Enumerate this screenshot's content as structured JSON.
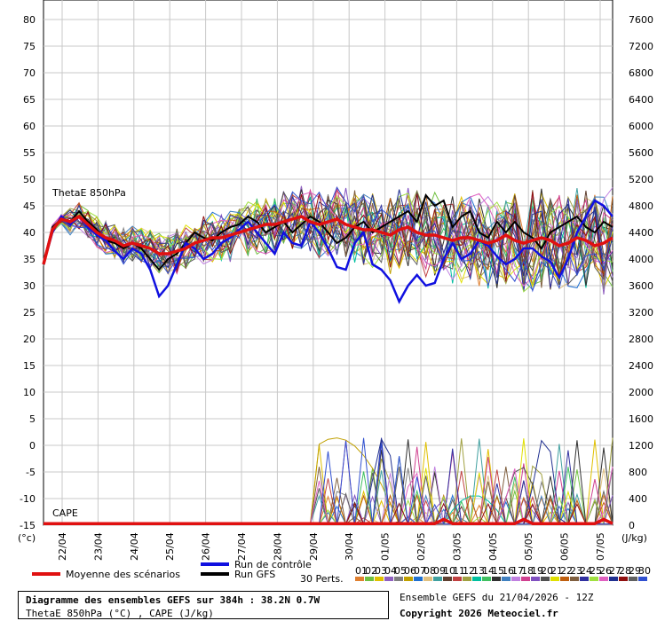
{
  "chart_data": {
    "type": "line",
    "title": "Diagramme des ensembles GEFS sur 384h : 38.2N 0.7W",
    "subtitle": "ThetaE 850hPa (°C) , CAPE (J/kg)",
    "left_axis": {
      "unit": "(°c)",
      "ylim": [
        -15,
        80
      ],
      "ticks": [
        80,
        75,
        70,
        65,
        60,
        55,
        50,
        45,
        40,
        35,
        30,
        25,
        20,
        15,
        10,
        5,
        0,
        -5,
        -10,
        -15
      ]
    },
    "right_axis": {
      "unit": "(J/kg)",
      "ylim": [
        0,
        7600
      ],
      "ticks": [
        7600,
        7200,
        6800,
        6400,
        6000,
        5600,
        5200,
        4800,
        4400,
        4000,
        3600,
        3200,
        2800,
        2400,
        2000,
        1600,
        1200,
        800,
        400,
        0
      ]
    },
    "x_ticks": [
      "22/04",
      "23/04",
      "24/04",
      "25/04",
      "26/04",
      "27/04",
      "28/04",
      "29/04",
      "30/04",
      "01/05",
      "02/05",
      "03/05",
      "04/05",
      "05/05",
      "06/05",
      "07/05"
    ],
    "grid": true,
    "panel_labels": {
      "thetae": "ThetaE 850hPa",
      "cape": "CAPE"
    },
    "legend": {
      "mean": "Moyenne des scénarios",
      "control": "Run de contrôle",
      "gfs": "Run GFS",
      "perts_label": "30 Perts.",
      "pert_numbers": [
        "01",
        "02",
        "03",
        "04",
        "05",
        "06",
        "07",
        "08",
        "09",
        "10",
        "11",
        "12",
        "13",
        "14",
        "15",
        "16",
        "17",
        "18",
        "19",
        "20",
        "21",
        "22",
        "23",
        "24",
        "25",
        "26",
        "27",
        "28",
        "29",
        "30"
      ],
      "pert_colors": [
        "#e08030",
        "#70c040",
        "#e0c000",
        "#9060c0",
        "#808080",
        "#c0a000",
        "#2070d0",
        "#e0c080",
        "#40a0a0",
        "#604030",
        "#c04040",
        "#a0a040",
        "#00c0a0",
        "#40c060",
        "#303030",
        "#4080c0",
        "#c080e0",
        "#d04090",
        "#8050c0",
        "#505050",
        "#e0e000",
        "#c06010",
        "#806040",
        "#3030a0",
        "#a0e040",
        "#e060c0",
        "#203090",
        "#901010",
        "#606060",
        "#3050d0"
      ],
      "colors": {
        "mean": "#e01010",
        "control": "#1010e0",
        "gfs": "#000000"
      }
    },
    "series": [
      {
        "name": "Moyenne des scénarios",
        "color": "#e01010",
        "x": [
          0,
          1,
          2,
          3,
          4,
          5,
          6,
          7,
          8,
          9,
          10,
          11,
          12,
          13,
          14,
          15,
          16,
          17,
          18,
          19,
          20,
          21,
          22,
          23,
          24,
          25,
          26,
          27,
          28,
          29,
          30,
          31,
          32,
          33,
          34,
          35,
          36,
          37,
          38,
          39,
          40,
          41,
          42,
          43,
          44,
          45,
          46,
          47,
          48,
          49,
          50,
          51,
          52,
          53,
          54,
          55,
          56,
          57,
          58,
          59,
          60,
          61,
          62,
          63,
          64
        ],
        "values": [
          34.0,
          40.5,
          42.5,
          42.0,
          43.0,
          41.5,
          40.0,
          39.0,
          38.5,
          37.5,
          38.0,
          37.5,
          37.0,
          36.0,
          36.0,
          36.5,
          37.0,
          38.0,
          38.5,
          39.0,
          39.0,
          39.5,
          40.0,
          40.5,
          41.0,
          41.5,
          41.5,
          42.0,
          42.5,
          43.0,
          42.0,
          41.5,
          42.0,
          42.5,
          41.5,
          41.0,
          40.5,
          40.5,
          40.0,
          39.5,
          40.5,
          41.0,
          40.0,
          39.5,
          39.5,
          39.0,
          38.5,
          39.0,
          39.0,
          38.5,
          38.0,
          38.5,
          39.5,
          38.5,
          38.0,
          38.5,
          39.0,
          38.5,
          37.5,
          38.0,
          39.0,
          38.5,
          37.5,
          38.0,
          39.0
        ]
      },
      {
        "name": "Run de contrôle",
        "color": "#1010e0",
        "x": [
          0,
          1,
          2,
          3,
          4,
          5,
          6,
          7,
          8,
          9,
          10,
          11,
          12,
          13,
          14,
          15,
          16,
          17,
          18,
          19,
          20,
          21,
          22,
          23,
          24,
          25,
          26,
          27,
          28,
          29,
          30,
          31,
          32,
          33,
          34,
          35,
          36,
          37,
          38,
          39,
          40,
          41,
          42,
          43,
          44,
          45,
          46,
          47,
          48,
          49,
          50,
          51,
          52,
          53,
          54,
          55,
          56,
          57,
          58,
          59,
          60,
          61,
          62,
          63,
          64
        ],
        "values": [
          34.0,
          40.0,
          43.0,
          41.5,
          43.0,
          41.0,
          39.5,
          38.5,
          36.5,
          35.0,
          37.0,
          36.0,
          33.0,
          28.0,
          30.0,
          34.0,
          38.0,
          37.0,
          35.0,
          36.0,
          38.0,
          39.0,
          40.5,
          42.0,
          40.0,
          38.0,
          36.0,
          40.0,
          38.0,
          37.5,
          42.0,
          40.0,
          37.0,
          33.5,
          33.0,
          38.0,
          40.0,
          34.0,
          33.0,
          31.0,
          27.0,
          30.0,
          32.0,
          30.0,
          30.5,
          35.0,
          38.0,
          35.0,
          36.0,
          38.5,
          37.5,
          35.5,
          34.0,
          35.0,
          37.0,
          37.0,
          35.5,
          34.5,
          31.5,
          35.0,
          40.0,
          43.0,
          46.0,
          45.0,
          43.0
        ]
      },
      {
        "name": "Run GFS",
        "color": "#000000",
        "x": [
          0,
          1,
          2,
          3,
          4,
          5,
          6,
          7,
          8,
          9,
          10,
          11,
          12,
          13,
          14,
          15,
          16,
          17,
          18,
          19,
          20,
          21,
          22,
          23,
          24,
          25,
          26,
          27,
          28,
          29,
          30,
          31,
          32,
          33,
          34,
          35,
          36,
          37,
          38,
          39,
          40,
          41,
          42,
          43,
          44,
          45,
          46,
          47,
          48,
          49,
          50,
          51,
          52,
          53,
          54,
          55,
          56,
          57,
          58,
          59,
          60,
          61,
          62,
          63,
          64
        ],
        "values": [
          34.0,
          41.0,
          42.5,
          42.0,
          44.0,
          42.0,
          40.5,
          38.5,
          38.0,
          37.0,
          38.0,
          37.0,
          35.0,
          33.0,
          35.0,
          36.0,
          38.0,
          40.0,
          39.0,
          38.5,
          40.0,
          41.0,
          41.5,
          43.0,
          42.0,
          40.0,
          41.0,
          42.0,
          40.0,
          41.5,
          43.0,
          42.0,
          40.0,
          38.0,
          39.0,
          41.0,
          42.0,
          40.0,
          41.0,
          42.0,
          43.0,
          44.0,
          42.0,
          47.0,
          45.0,
          46.0,
          41.0,
          43.0,
          44.0,
          40.0,
          39.0,
          42.0,
          40.0,
          42.0,
          40.0,
          39.0,
          37.0,
          40.0,
          41.0,
          42.0,
          43.0,
          41.0,
          40.0,
          42.0,
          41.0
        ]
      }
    ]
  },
  "footer": {
    "title": "Diagramme des ensembles GEFS sur 384h : 38.2N 0.7W",
    "subtitle": "ThetaE 850hPa (°C) , CAPE (J/kg)",
    "ensemble": "Ensemble GEFS du 21/04/2026 - 12Z",
    "copyright": "Copyright 2026 Meteociel.fr"
  }
}
